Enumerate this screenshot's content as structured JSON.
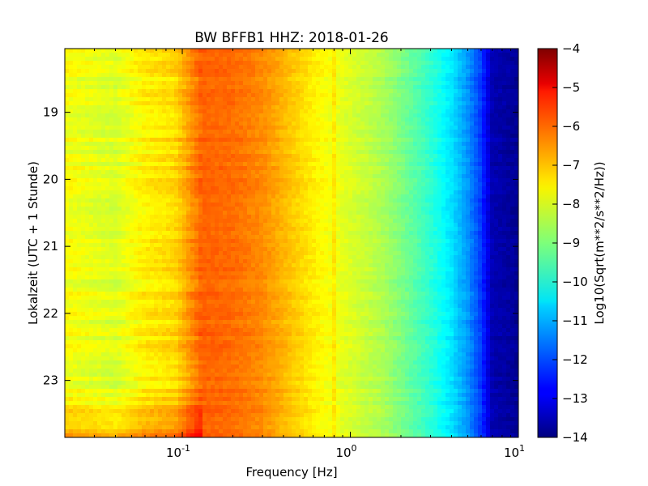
{
  "chart_data": {
    "type": "heatmap",
    "title": "BW BFFB1 HHZ: 2018-01-26",
    "xlabel": "Frequency [Hz]",
    "ylabel": "Lokalzeit (UTC + 1 Stunde)",
    "x_scale": "log",
    "xlim": [
      0.02,
      10
    ],
    "x_ticks": [
      {
        "value": 0.1,
        "base": "10",
        "exp": "-1"
      },
      {
        "value": 1,
        "base": "10",
        "exp": "0"
      },
      {
        "value": 10,
        "base": "10",
        "exp": "1"
      }
    ],
    "ylim": [
      18.05,
      23.85
    ],
    "y_inverted": true,
    "y_ticks": [
      19,
      20,
      21,
      22,
      23
    ],
    "y_tick_labels": [
      "19",
      "20",
      "21",
      "22",
      "23"
    ],
    "colorbar": {
      "label": "Log10(Sqrt(m**2/s**2/Hz))",
      "colormap": "jet",
      "range": [
        -14,
        -4
      ],
      "ticks": [
        -4,
        -5,
        -6,
        -7,
        -8,
        -9,
        -10,
        -11,
        -12,
        -13,
        -14
      ],
      "tick_labels": [
        "−4",
        "−5",
        "−6",
        "−7",
        "−8",
        "−9",
        "−10",
        "−11",
        "−12",
        "−13",
        "−14"
      ]
    },
    "spectrum_profile": {
      "frequency_hz": [
        0.02,
        0.04,
        0.06,
        0.09,
        0.13,
        0.2,
        0.3,
        0.45,
        0.6,
        0.8,
        1.0,
        1.5,
        2.0,
        3.0,
        4.0,
        5.0,
        6.0,
        7.0,
        10.0
      ],
      "log10_amplitude": [
        -7.8,
        -8.1,
        -7.6,
        -7.4,
        -6.2,
        -6.3,
        -6.6,
        -7.2,
        -7.6,
        -7.9,
        -8.1,
        -8.5,
        -9.0,
        -9.8,
        -10.5,
        -11.3,
        -12.2,
        -13.5,
        -13.8
      ]
    },
    "grid": false
  }
}
